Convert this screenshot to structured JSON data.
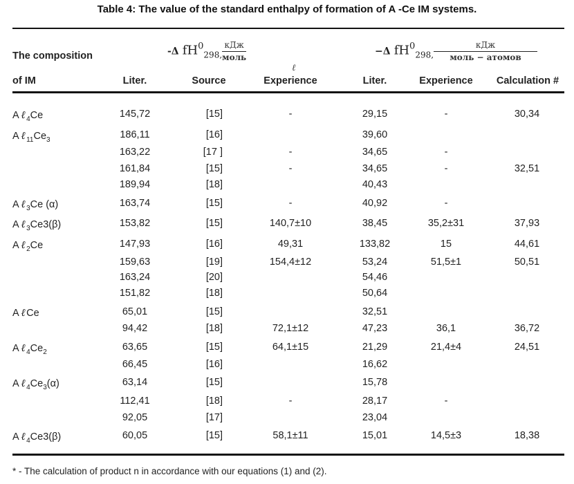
{
  "title": "Table 4: The value of the standard enthalpy of formation of A   -Ce IM systems.",
  "header": {
    "composition_line1": "The composition",
    "composition_line2": "of IM",
    "group1": {
      "delta": "-Δ",
      "fh": "fH",
      "sup": "0",
      "sub": "298,",
      "unit_num": "кДж",
      "unit_den": "моль"
    },
    "group2": {
      "delta": "−Δ",
      "fh": "fH",
      "sup": "0",
      "sub": "298,",
      "unit_num": "кДж",
      "unit_den": "моль − атомов"
    },
    "ell_mark": "ℓ",
    "columns": {
      "liter1": "Liter.",
      "source": "Source",
      "experience1": "Experience",
      "liter2": "Liter.",
      "experience2": "Experience",
      "calculation": "Calculation #"
    }
  },
  "rows": [
    {
      "comp_pre": "A",
      "comp_l": "ℓ",
      "comp_sub1": "4",
      "comp_mid": "Ce",
      "comp_sub2": "",
      "comp_suf": "",
      "liter1": "145,72",
      "source": "[15]",
      "exp1": "-",
      "liter2": "29,15",
      "exp2": "-",
      "calc": "30,34"
    },
    {
      "comp_pre": "A",
      "comp_l": "ℓ",
      "comp_sub1": "11",
      "comp_mid": "Ce",
      "comp_sub2": "3",
      "comp_suf": "",
      "liter1": "186,11",
      "source": "[16]",
      "exp1": "",
      "liter2": "39,60",
      "exp2": "",
      "calc": ""
    },
    {
      "comp_pre": "",
      "comp_l": "",
      "comp_sub1": "",
      "comp_mid": "",
      "comp_sub2": "",
      "comp_suf": "",
      "liter1": "163,22",
      "source": "[17 ]",
      "exp1": "-",
      "liter2": "34,65",
      "exp2": "-",
      "calc": ""
    },
    {
      "comp_pre": "",
      "comp_l": "",
      "comp_sub1": "",
      "comp_mid": "",
      "comp_sub2": "",
      "comp_suf": "",
      "liter1": "161,84",
      "source": "[15]",
      "exp1": "-",
      "liter2": "34,65",
      "exp2": "-",
      "calc": "32,51"
    },
    {
      "comp_pre": "",
      "comp_l": "",
      "comp_sub1": "",
      "comp_mid": "",
      "comp_sub2": "",
      "comp_suf": "",
      "liter1": "189,94",
      "source": "[18]",
      "exp1": "",
      "liter2": "40,43",
      "exp2": "",
      "calc": ""
    },
    {
      "comp_pre": "A",
      "comp_l": "ℓ",
      "comp_sub1": "3",
      "comp_mid": "Ce (α)",
      "comp_sub2": "",
      "comp_suf": "",
      "liter1": "163,74",
      "source": "[15]",
      "exp1": "-",
      "liter2": "40,92",
      "exp2": "-",
      "calc": ""
    },
    {
      "comp_pre": "A",
      "comp_l": "ℓ",
      "comp_sub1": "3",
      "comp_mid": "Ce3(β)",
      "comp_sub2": "",
      "comp_suf": "",
      "liter1": "153,82",
      "source": "[15]",
      "exp1": "140,7±10",
      "liter2": "38,45",
      "exp2": "35,2±31",
      "calc": "37,93"
    },
    {
      "comp_pre": "A",
      "comp_l": "ℓ",
      "comp_sub1": "2",
      "comp_mid": "Ce",
      "comp_sub2": "",
      "comp_suf": "",
      "liter1": "147,93",
      "source": "[16]",
      "exp1": "49,31",
      "liter2": "133,82",
      "exp2": "15",
      "calc": "44,61"
    },
    {
      "comp_pre": "",
      "comp_l": "",
      "comp_sub1": "",
      "comp_mid": "",
      "comp_sub2": "",
      "comp_suf": "",
      "liter1": "159,63",
      "source": "[19]",
      "exp1": "154,4±12",
      "liter2": "53,24",
      "exp2": "51,5±1",
      "calc": "50,51"
    },
    {
      "comp_pre": "",
      "comp_l": "",
      "comp_sub1": "",
      "comp_mid": "",
      "comp_sub2": "",
      "comp_suf": "",
      "liter1": "163,24",
      "source": "[20]",
      "exp1": "",
      "liter2": "54,46",
      "exp2": "",
      "calc": ""
    },
    {
      "comp_pre": "",
      "comp_l": "",
      "comp_sub1": "",
      "comp_mid": "",
      "comp_sub2": "",
      "comp_suf": "",
      "liter1": "151,82",
      "source": "[18]",
      "exp1": "",
      "liter2": "50,64",
      "exp2": "",
      "calc": ""
    },
    {
      "comp_pre": "A",
      "comp_l": "ℓ",
      "comp_sub1": "",
      "comp_mid": "Ce",
      "comp_sub2": "",
      "comp_suf": "",
      "liter1": "65,01",
      "source": "[15]",
      "exp1": "",
      "liter2": "32,51",
      "exp2": "",
      "calc": ""
    },
    {
      "comp_pre": "",
      "comp_l": "",
      "comp_sub1": "",
      "comp_mid": "",
      "comp_sub2": "",
      "comp_suf": "",
      "liter1": "94,42",
      "source": "[18]",
      "exp1": "72,1±12",
      "liter2": "47,23",
      "exp2": "36,1",
      "calc": "36,72"
    },
    {
      "comp_pre": "A",
      "comp_l": "ℓ",
      "comp_sub1": "4",
      "comp_mid": "Ce",
      "comp_sub2": "2",
      "comp_suf": "",
      "liter1": "63,65",
      "source": "[15]",
      "exp1": "64,1±15",
      "liter2": "21,29",
      "exp2": "21,4±4",
      "calc": "24,51"
    },
    {
      "comp_pre": "",
      "comp_l": "",
      "comp_sub1": "",
      "comp_mid": "",
      "comp_sub2": "",
      "comp_suf": "",
      "liter1": "66,45",
      "source": "[16]",
      "exp1": "",
      "liter2": "16,62",
      "exp2": "",
      "calc": ""
    },
    {
      "comp_pre": "A",
      "comp_l": "ℓ",
      "comp_sub1": "4",
      "comp_mid": "Ce",
      "comp_sub2": "3",
      "comp_suf": "(α)",
      "liter1": "63,14",
      "source": "[15]",
      "exp1": "",
      "liter2": "15,78",
      "exp2": "",
      "calc": ""
    },
    {
      "comp_pre": "",
      "comp_l": "",
      "comp_sub1": "",
      "comp_mid": "",
      "comp_sub2": "",
      "comp_suf": "",
      "liter1": "112,41",
      "source": "[18]",
      "exp1": "-",
      "liter2": "28,17",
      "exp2": "-",
      "calc": ""
    },
    {
      "comp_pre": "",
      "comp_l": "",
      "comp_sub1": "",
      "comp_mid": "",
      "comp_sub2": "",
      "comp_suf": "",
      "liter1": "92,05",
      "source": "[17]",
      "exp1": "",
      "liter2": "23,04",
      "exp2": "",
      "calc": ""
    },
    {
      "comp_pre": "A",
      "comp_l": "ℓ",
      "comp_sub1": "4",
      "comp_mid": "Ce3(β)",
      "comp_sub2": "",
      "comp_suf": "",
      "liter1": "60,05",
      "source": "[15]",
      "exp1": "58,1±11",
      "liter2": "15,01",
      "exp2": "14,5±3",
      "calc": "18,38"
    }
  ],
  "footnote": "* - The calculation of product n in accordance with our equations (1) and (2)."
}
